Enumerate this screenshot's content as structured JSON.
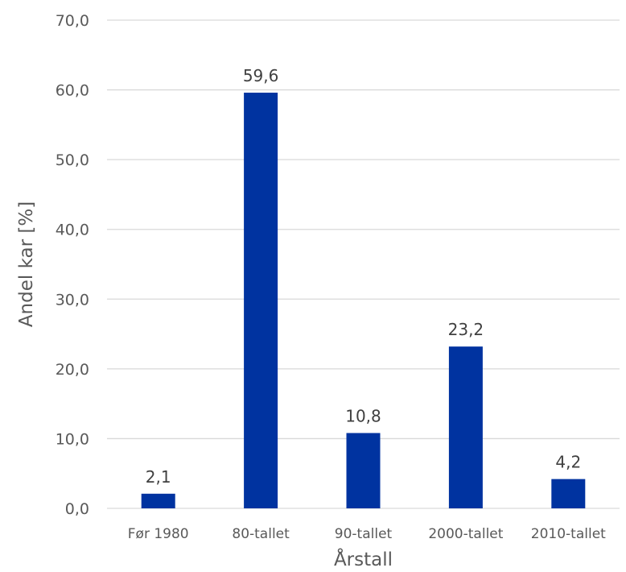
{
  "chart_data": {
    "type": "bar",
    "categories": [
      "Før 1980",
      "80-tallet",
      "90-tallet",
      "2000-tallet",
      "2010-tallet"
    ],
    "values": [
      2.1,
      59.6,
      10.8,
      23.2,
      4.2
    ],
    "data_labels": [
      "2,1",
      "59,6",
      "10,8",
      "23,2",
      "4,2"
    ],
    "xlabel": "Årstall",
    "ylabel": "Andel kar [%]",
    "ylim": [
      0,
      70
    ],
    "yticks": [
      0,
      10,
      20,
      30,
      40,
      50,
      60,
      70
    ],
    "ytick_labels": [
      "0,0",
      "10,0",
      "20,0",
      "30,0",
      "40,0",
      "50,0",
      "60,0",
      "70,0"
    ],
    "grid": true,
    "legend": false,
    "bar_color": "#0033A0",
    "grid_color": "#D9D9D9"
  }
}
